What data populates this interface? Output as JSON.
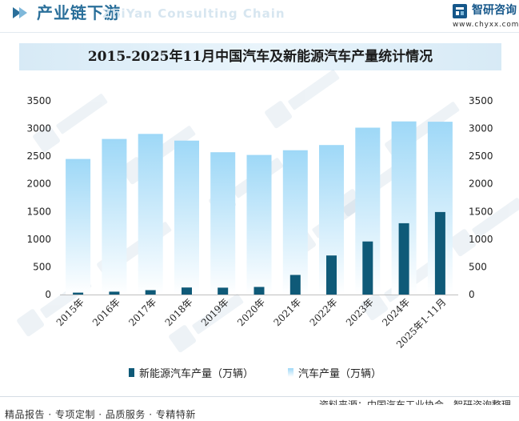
{
  "header": {
    "title": "产业链下游",
    "watermark": "ZhiYan Consulting Chain",
    "logo_name": "智研咨询",
    "logo_url": "www.chyxx.com"
  },
  "colors": {
    "nev": "#0f5a78",
    "auto_top": "#9ed8f7",
    "auto_bottom": "#ffffff",
    "accent": "#2a6f9a"
  },
  "chart_data": {
    "type": "bar",
    "title": "2015-2025年11月中国汽车及新能源汽车产量统计情况",
    "categories": [
      "2015年",
      "2016年",
      "2017年",
      "2018年",
      "2019年",
      "2020年",
      "2021年",
      "2022年",
      "2023年",
      "2024年",
      "2025年1-11月"
    ],
    "series": [
      {
        "name": "新能源汽车产量（万辆）",
        "values": [
          34,
          52,
          79,
          127,
          124,
          137,
          355,
          706,
          959,
          1289,
          1491
        ]
      },
      {
        "name": "汽车产量（万辆）",
        "values": [
          2450,
          2812,
          2902,
          2781,
          2572,
          2523,
          2608,
          2702,
          3016,
          3128,
          3123
        ]
      }
    ],
    "yticks": [
      "0",
      "500",
      "1000",
      "1500",
      "2000",
      "2500",
      "3000",
      "3500"
    ],
    "ylim": [
      0,
      3500
    ],
    "xlabel": "",
    "ylabel": "",
    "grid": false,
    "legend_position": "bottom-center"
  },
  "footer": {
    "source": "资料来源：中国汽车工业协会、智研咨询整理",
    "services": "精品报告 · 专项定制 · 品质服务 · 专精特新"
  }
}
